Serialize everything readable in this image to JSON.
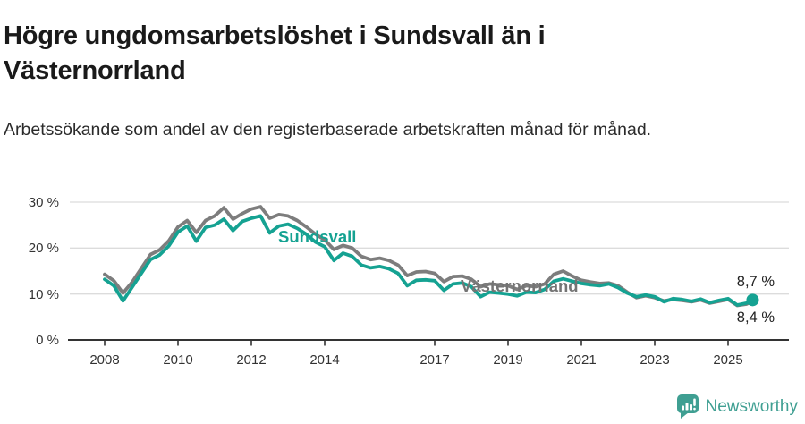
{
  "header": {
    "title": "Högre ungdomsarbetslöshet i Sundsvall än i Västernorrland",
    "subtitle": "Arbetssökande som andel av den registerbaserade arbetskraften månad för månad."
  },
  "chart_data": {
    "type": "line",
    "title": "Högre ungdomsarbetslöshet i Sundsvall än i Västernorrland",
    "xlabel": "",
    "ylabel": "Arbetssökande som andel av den registerbaserade arbetskraften",
    "unit": "%",
    "grid": "horizontal",
    "legend_position": "inline-labels",
    "xlim": [
      2008,
      2026
    ],
    "ylim": [
      0,
      32
    ],
    "x_ticks": [
      "2008",
      "2010",
      "2012",
      "2014",
      "2017",
      "2019",
      "2021",
      "2023",
      "2025"
    ],
    "x_tick_years": [
      2008,
      2010,
      2012,
      2014,
      2017,
      2019,
      2021,
      2023,
      2025
    ],
    "y_ticks": [
      "30 %",
      "20 %",
      "10 %",
      "0 %"
    ],
    "y_tick_values": [
      30,
      20,
      10,
      0
    ],
    "x": [
      2008.0,
      2008.25,
      2008.5,
      2008.75,
      2009.0,
      2009.25,
      2009.5,
      2009.75,
      2010.0,
      2010.25,
      2010.5,
      2010.75,
      2011.0,
      2011.25,
      2011.5,
      2011.75,
      2012.0,
      2012.25,
      2012.5,
      2012.75,
      2013.0,
      2013.25,
      2013.5,
      2013.75,
      2014.0,
      2014.25,
      2014.5,
      2014.75,
      2015.0,
      2015.25,
      2015.5,
      2015.75,
      2016.0,
      2016.25,
      2016.5,
      2016.75,
      2017.0,
      2017.25,
      2017.5,
      2017.75,
      2018.0,
      2018.25,
      2018.5,
      2018.75,
      2019.0,
      2019.25,
      2019.5,
      2019.75,
      2020.0,
      2020.25,
      2020.5,
      2020.75,
      2021.0,
      2021.25,
      2021.5,
      2021.75,
      2022.0,
      2022.25,
      2022.5,
      2022.75,
      2023.0,
      2023.25,
      2023.5,
      2023.75,
      2024.0,
      2024.25,
      2024.5,
      2024.75,
      2025.0,
      2025.25,
      2025.5,
      2025.67
    ],
    "series": [
      {
        "name": "Sundsvall",
        "color": "#15a292",
        "end_label": "8,7 %",
        "end_value": 8.7,
        "values": [
          13.2,
          11.8,
          8.5,
          11.5,
          14.5,
          17.5,
          18.5,
          20.5,
          23.5,
          24.8,
          21.5,
          24.5,
          25.0,
          26.3,
          23.8,
          25.8,
          26.5,
          27.0,
          23.3,
          24.8,
          25.2,
          24.3,
          23.0,
          21.3,
          20.3,
          17.3,
          18.9,
          18.2,
          16.3,
          15.7,
          16.0,
          15.5,
          14.5,
          11.8,
          13.0,
          13.1,
          12.9,
          10.8,
          12.2,
          12.4,
          11.6,
          9.4,
          10.4,
          10.2,
          10.0,
          9.6,
          10.4,
          10.3,
          11.0,
          12.8,
          13.3,
          12.8,
          12.3,
          12.0,
          11.8,
          12.2,
          11.4,
          10.2,
          9.4,
          9.8,
          9.4,
          8.3,
          9.0,
          8.8,
          8.4,
          8.9,
          8.1,
          8.6,
          9.0,
          7.6,
          8.0,
          8.7
        ]
      },
      {
        "name": "Västernorrland",
        "color": "#7d7d7d",
        "end_label": "8,4 %",
        "end_value": 8.4,
        "values": [
          14.3,
          12.9,
          10.2,
          12.6,
          15.6,
          18.6,
          19.6,
          21.6,
          24.6,
          26.0,
          23.4,
          26.0,
          27.0,
          28.8,
          26.3,
          27.5,
          28.5,
          29.0,
          26.5,
          27.3,
          27.0,
          26.0,
          24.6,
          23.0,
          21.8,
          19.7,
          20.6,
          20.0,
          18.2,
          17.5,
          17.8,
          17.3,
          16.3,
          14.0,
          14.8,
          14.9,
          14.5,
          12.7,
          13.8,
          13.9,
          13.2,
          11.6,
          12.2,
          12.0,
          11.8,
          11.0,
          11.8,
          11.6,
          12.2,
          14.3,
          15.0,
          13.9,
          13.0,
          12.6,
          12.3,
          12.4,
          11.8,
          10.4,
          9.2,
          9.6,
          9.2,
          8.5,
          8.8,
          8.6,
          8.3,
          8.7,
          8.0,
          8.4,
          8.8,
          7.5,
          7.8,
          8.4
        ]
      }
    ],
    "colors": {
      "sundsvall": "#15a292",
      "vasternorrland": "#7d7d7d",
      "gridline": "#dcdcdc",
      "axis": "#333333",
      "tick_text": "#333333",
      "end_label_text": "#222222"
    }
  },
  "branding": {
    "logo_text": "Newsworthy",
    "color": "#3f9f92"
  }
}
